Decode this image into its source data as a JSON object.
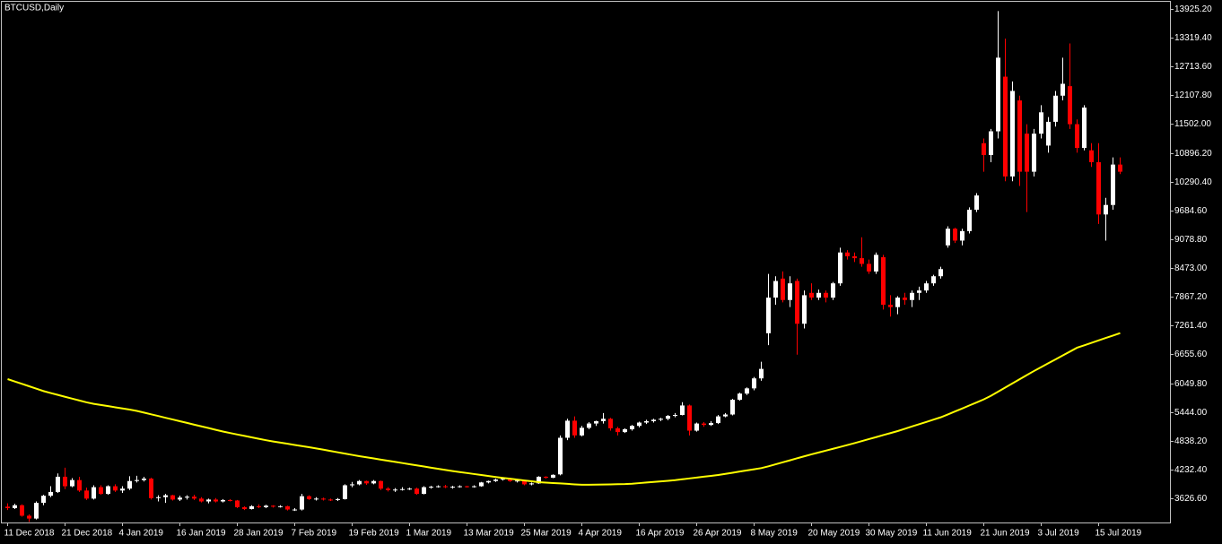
{
  "chart_data": {
    "type": "candlestick",
    "title": "BTCUSD,Daily",
    "categories": [
      "11 Dec 2018",
      null,
      null,
      null,
      null,
      null,
      null,
      null,
      "21 Dec 2018",
      null,
      null,
      null,
      null,
      null,
      null,
      null,
      "4 Jan 2019",
      null,
      null,
      null,
      null,
      null,
      null,
      null,
      "16 Jan 2019",
      null,
      null,
      null,
      null,
      null,
      null,
      null,
      "28 Jan 2019",
      null,
      null,
      null,
      null,
      null,
      null,
      null,
      "7 Feb 2019",
      null,
      null,
      null,
      null,
      null,
      null,
      null,
      "19 Feb 2019",
      null,
      null,
      null,
      null,
      null,
      null,
      null,
      "1 Mar 2019",
      null,
      null,
      null,
      null,
      null,
      null,
      null,
      "13 Mar 2019",
      null,
      null,
      null,
      null,
      null,
      null,
      null,
      "25 Mar 2019",
      null,
      null,
      null,
      null,
      null,
      null,
      null,
      "4 Apr 2019",
      null,
      null,
      null,
      null,
      null,
      null,
      null,
      "16 Apr 2019",
      null,
      null,
      null,
      null,
      null,
      null,
      null,
      "26 Apr 2019",
      null,
      null,
      null,
      null,
      null,
      null,
      null,
      "8 May 2019",
      null,
      null,
      null,
      null,
      null,
      null,
      null,
      "20 May 2019",
      null,
      null,
      null,
      null,
      null,
      null,
      null,
      "30 May 2019",
      null,
      null,
      null,
      null,
      null,
      null,
      null,
      "11 Jun 2019",
      null,
      null,
      null,
      null,
      null,
      null,
      null,
      "21 Jun 2019",
      null,
      null,
      null,
      null,
      null,
      null,
      null,
      "3 Jul 2019",
      null,
      null,
      null,
      null,
      null,
      null,
      null,
      "15 Jul 2019",
      null,
      null,
      null
    ],
    "open": [
      3450,
      3420,
      3480,
      3260,
      3200,
      3530,
      3680,
      3760,
      4080,
      3880,
      4010,
      3790,
      3620,
      3860,
      3720,
      3880,
      3790,
      3830,
      3990,
      4010,
      4040,
      3630,
      3650,
      3690,
      3600,
      3640,
      3660,
      3620,
      3560,
      3600,
      3560,
      3590,
      3580,
      3440,
      3400,
      3460,
      3440,
      3470,
      3450,
      3460,
      3390,
      3390,
      3670,
      3610,
      3620,
      3600,
      3590,
      3610,
      3900,
      3920,
      3990,
      3940,
      3990,
      3830,
      3800,
      3810,
      3820,
      3830,
      3720,
      3860,
      3870,
      3880,
      3860,
      3870,
      3880,
      3870,
      3880,
      3960,
      3990,
      4020,
      4040,
      3990,
      4000,
      3920,
      3940,
      4080,
      4060,
      4130,
      4900,
      5260,
      4950,
      5110,
      5200,
      5250,
      5300,
      5100,
      5020,
      5080,
      5150,
      5220,
      5250,
      5280,
      5300,
      5360,
      5380,
      5580,
      5050,
      5200,
      5170,
      5210,
      5350,
      5390,
      5700,
      5830,
      5940,
      6150,
      7100,
      7850,
      8250,
      7800,
      8200,
      7300,
      7950,
      7850,
      7950,
      7850,
      8150,
      8800,
      8720,
      8680,
      8560,
      8400,
      8700,
      7700,
      7650,
      7850,
      7800,
      7950,
      8000,
      8150,
      8300,
      8950,
      9300,
      9050,
      9250,
      9700,
      11100,
      10850,
      11350,
      12500,
      10400,
      12000,
      11300,
      10500,
      11300,
      11050,
      11550,
      12100,
      12300,
      11500,
      11000,
      10950,
      10700,
      9600,
      9800,
      10650
    ],
    "high": [
      3520,
      3510,
      3500,
      3290,
      3560,
      3700,
      3880,
      4150,
      4270,
      4050,
      4080,
      3850,
      3900,
      3900,
      3900,
      3920,
      3880,
      4090,
      4100,
      4080,
      4060,
      3690,
      3720,
      3700,
      3680,
      3690,
      3700,
      3650,
      3620,
      3630,
      3610,
      3610,
      3590,
      3460,
      3480,
      3500,
      3490,
      3480,
      3480,
      3470,
      3420,
      3720,
      3690,
      3650,
      3640,
      3620,
      3630,
      3920,
      3970,
      4010,
      4000,
      4010,
      4000,
      3860,
      3840,
      3860,
      3850,
      3850,
      3880,
      3890,
      3900,
      3910,
      3890,
      3900,
      3890,
      3900,
      3970,
      4000,
      4040,
      4060,
      4060,
      4030,
      4010,
      3960,
      4090,
      4090,
      4130,
      4950,
      5300,
      5350,
      5150,
      5230,
      5260,
      5420,
      5320,
      5130,
      5100,
      5170,
      5240,
      5280,
      5300,
      5320,
      5380,
      5420,
      5650,
      5600,
      5220,
      5230,
      5250,
      5380,
      5420,
      5720,
      5850,
      5960,
      6180,
      6500,
      8350,
      8300,
      8400,
      8300,
      8250,
      8000,
      8150,
      8020,
      8000,
      8180,
      8900,
      8850,
      8800,
      9120,
      8650,
      8800,
      8750,
      7900,
      7880,
      7950,
      8000,
      8080,
      8200,
      8330,
      8500,
      9350,
      9320,
      9300,
      9750,
      10050,
      11200,
      11400,
      13880,
      13300,
      12400,
      12100,
      11500,
      11400,
      11900,
      11650,
      12200,
      12900,
      13200,
      11600,
      11900,
      11100,
      11100,
      9950,
      10800,
      10800
    ],
    "low": [
      3380,
      3400,
      3240,
      3130,
      3180,
      3480,
      3650,
      3740,
      3820,
      3860,
      3760,
      3590,
      3600,
      3700,
      3700,
      3760,
      3740,
      3800,
      3960,
      3980,
      3600,
      3560,
      3530,
      3580,
      3570,
      3600,
      3590,
      3540,
      3520,
      3540,
      3540,
      3560,
      3420,
      3380,
      3390,
      3420,
      3420,
      3430,
      3430,
      3370,
      3360,
      3370,
      3590,
      3580,
      3580,
      3570,
      3570,
      3600,
      3860,
      3900,
      3910,
      3920,
      3800,
      3770,
      3760,
      3790,
      3800,
      3700,
      3710,
      3830,
      3850,
      3840,
      3830,
      3850,
      3850,
      3850,
      3870,
      3940,
      3970,
      4000,
      3970,
      3960,
      3900,
      3900,
      3930,
      4040,
      4050,
      4110,
      4850,
      4900,
      4930,
      5080,
      5150,
      5200,
      5050,
      4950,
      5000,
      5050,
      5120,
      5190,
      5220,
      5250,
      5270,
      5330,
      5370,
      4950,
      5030,
      5130,
      5150,
      5190,
      5330,
      5370,
      5680,
      5800,
      5900,
      6100,
      6850,
      7700,
      7750,
      7650,
      6650,
      7200,
      7800,
      7800,
      7750,
      7800,
      8100,
      8650,
      8600,
      8500,
      8350,
      8350,
      7600,
      7450,
      7500,
      7700,
      7650,
      7800,
      7950,
      8100,
      8250,
      8900,
      9000,
      8950,
      9200,
      9650,
      10500,
      10700,
      11200,
      10300,
      10300,
      10200,
      9650,
      10400,
      11200,
      10900,
      11450,
      12000,
      11400,
      10900,
      10950,
      10600,
      9400,
      9050,
      9700,
      10450
    ],
    "close": [
      3420,
      3480,
      3260,
      3200,
      3530,
      3680,
      3760,
      4080,
      3880,
      4010,
      3790,
      3620,
      3860,
      3720,
      3880,
      3790,
      3830,
      3990,
      4010,
      4040,
      3630,
      3650,
      3690,
      3600,
      3640,
      3660,
      3620,
      3560,
      3600,
      3560,
      3590,
      3580,
      3440,
      3400,
      3460,
      3440,
      3470,
      3450,
      3460,
      3390,
      3390,
      3670,
      3610,
      3620,
      3600,
      3590,
      3610,
      3900,
      3920,
      3990,
      3940,
      3990,
      3830,
      3800,
      3810,
      3820,
      3830,
      3720,
      3860,
      3870,
      3880,
      3860,
      3870,
      3880,
      3870,
      3880,
      3960,
      3990,
      4020,
      4040,
      3990,
      4000,
      3920,
      3940,
      4080,
      4060,
      4120,
      4900,
      5260,
      4950,
      5110,
      5200,
      5250,
      5300,
      5100,
      5020,
      5080,
      5150,
      5220,
      5250,
      5280,
      5300,
      5360,
      5380,
      5580,
      5050,
      5200,
      5170,
      5210,
      5350,
      5390,
      5700,
      5830,
      5940,
      6150,
      6350,
      7850,
      8200,
      7800,
      8150,
      7300,
      7900,
      7850,
      7950,
      7850,
      8150,
      8800,
      8720,
      8680,
      8560,
      8400,
      8750,
      7700,
      7650,
      7850,
      7800,
      7950,
      8000,
      8150,
      8300,
      8450,
      9300,
      9050,
      9250,
      9700,
      10000,
      10850,
      11350,
      12900,
      10400,
      12200,
      10500,
      10500,
      11300,
      11750,
      11550,
      12100,
      12350,
      11500,
      11000,
      11850,
      10700,
      9600,
      9800,
      10650,
      10500
    ],
    "up_color": "#ffffff",
    "down_color": "#ff0000",
    "moving_average": {
      "color": "#ffff00",
      "values": [
        6135,
        6085,
        6034,
        5984,
        5934,
        5883,
        5842,
        5803,
        5763,
        5724,
        5685,
        5646,
        5614,
        5590,
        5566,
        5541,
        5517,
        5493,
        5466,
        5430,
        5394,
        5358,
        5321,
        5285,
        5249,
        5213,
        5176,
        5140,
        5104,
        5067,
        5031,
        5000,
        4969,
        4939,
        4909,
        4879,
        4849,
        4822,
        4798,
        4774,
        4749,
        4725,
        4701,
        4676,
        4649,
        4622,
        4594,
        4567,
        4540,
        4513,
        4489,
        4465,
        4440,
        4416,
        4392,
        4368,
        4344,
        4320,
        4296,
        4271,
        4247,
        4223,
        4200,
        4179,
        4158,
        4137,
        4116,
        4095,
        4074,
        4056,
        4038,
        4020,
        4002,
        3984,
        3966,
        3957,
        3948,
        3939,
        3930,
        3920,
        3911,
        3911,
        3914,
        3917,
        3920,
        3923,
        3926,
        3934,
        3946,
        3958,
        3970,
        3983,
        3995,
        4009,
        4027,
        4045,
        4063,
        4081,
        4099,
        4117,
        4141,
        4165,
        4190,
        4214,
        4238,
        4262,
        4300,
        4342,
        4384,
        4426,
        4469,
        4511,
        4552,
        4591,
        4630,
        4669,
        4708,
        4748,
        4788,
        4830,
        4872,
        4914,
        4957,
        4999,
        5041,
        5089,
        5138,
        5186,
        5234,
        5283,
        5331,
        5391,
        5454,
        5517,
        5581,
        5644,
        5708,
        5783,
        5870,
        5958,
        6045,
        6133,
        6220,
        6306,
        6388,
        6470,
        6551,
        6633,
        6714,
        6796,
        6847,
        6898,
        6950,
        7001,
        7052,
        7103
      ]
    },
    "ylim": [
      3136,
      14076
    ],
    "yticks": [
      {
        "value": 3626.6,
        "label": "3626.60"
      },
      {
        "value": 4232.4,
        "label": "4232.40"
      },
      {
        "value": 4838.2,
        "label": "4838.20"
      },
      {
        "value": 5444,
        "label": "5444.00"
      },
      {
        "value": 6049.8,
        "label": "6049.80"
      },
      {
        "value": 6655.6,
        "label": "6655.60"
      },
      {
        "value": 7261.4,
        "label": "7261.40"
      },
      {
        "value": 7867.2,
        "label": "7867.20"
      },
      {
        "value": 8473,
        "label": "8473.00"
      },
      {
        "value": 9078.8,
        "label": "9078.80"
      },
      {
        "value": 9684.6,
        "label": "9684.60"
      },
      {
        "value": 10290.4,
        "label": "10290.40"
      },
      {
        "value": 10896.2,
        "label": "10896.20"
      },
      {
        "value": 11502,
        "label": "11502.00"
      },
      {
        "value": 12107.8,
        "label": "12107.80"
      },
      {
        "value": 12713.6,
        "label": "12713.60"
      },
      {
        "value": 13319.4,
        "label": "13319.40"
      },
      {
        "value": 13925.2,
        "label": "13925.20"
      }
    ]
  }
}
